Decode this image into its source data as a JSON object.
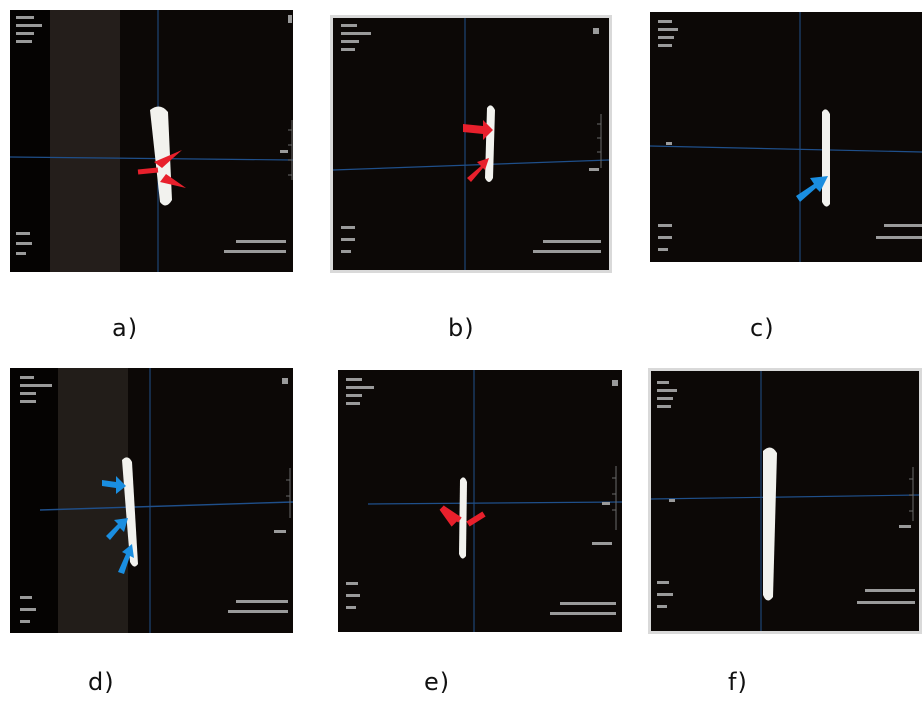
{
  "panels": [
    {
      "label": "a)",
      "arrow_color": "#e8202c",
      "arrows": 2
    },
    {
      "label": "b)",
      "arrow_color": "#e8202c",
      "arrows": 2
    },
    {
      "label": "c)",
      "arrow_color": "#1a8ee0",
      "arrows": 1
    },
    {
      "label": "d)",
      "arrow_color": "#1a8ee0",
      "arrows": 3
    },
    {
      "label": "e)",
      "arrow_color": "#e8202c",
      "arrows": 2
    },
    {
      "label": "f)",
      "arrow_color": "",
      "arrows": 0
    }
  ],
  "colors": {
    "background": "#0c0806",
    "crosshair": "#1f4f8a",
    "specimen": "#f2f2ee",
    "overlay_text": "#9a9a9a"
  }
}
